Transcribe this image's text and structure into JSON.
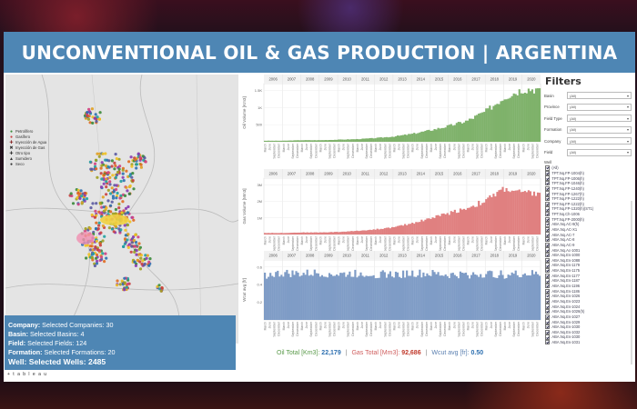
{
  "header": {
    "title": "UNCONVENTIONAL OIL & GAS PRODUCTION | ARGENTINA"
  },
  "map": {
    "legend": [
      {
        "label": "Petrolífero",
        "symbol": "dot",
        "color": "#3a8a3a"
      },
      {
        "label": "Gasífero",
        "symbol": "dot",
        "color": "#c84040"
      },
      {
        "label": "Inyección de Agua",
        "symbol": "plus",
        "color": "#8a2a2a"
      },
      {
        "label": "Inyección de Gas",
        "symbol": "cross",
        "color": "#333333"
      },
      {
        "label": "Otro tipo",
        "symbol": "plus",
        "color": "#333333"
      },
      {
        "label": "Sumidero",
        "symbol": "triangle",
        "color": "#333333"
      },
      {
        "label": "Seco",
        "symbol": "dot",
        "color": "#333333"
      }
    ],
    "credit": "© 2022 Mapbox © OpenStreetMap",
    "scale": "100 km"
  },
  "summary": {
    "company_label": "Company:",
    "company_value": "Selected Companies: 30",
    "basin_label": "Basin:",
    "basin_value": "Selected Basins: 4",
    "field_label": "Field:",
    "field_value": "Selected Fields: 124",
    "formation_label": "Formation:",
    "formation_value": "Selected Formations: 20",
    "wells_label": "Well:",
    "wells_value": "Selected Wells: 2485"
  },
  "brand": "+ t a b l e a u",
  "chart_data": [
    {
      "type": "bar",
      "name": "oil",
      "ylabel": "Oil Volume [Km3]",
      "color": "#7fb26b",
      "years": [
        "2006",
        "2007",
        "2008",
        "2009",
        "2010",
        "2011",
        "2012",
        "2013",
        "2014",
        "2015",
        "2016",
        "2017",
        "2018",
        "2019",
        "2020"
      ],
      "yticks": [
        "500",
        "1K",
        "1.5K"
      ],
      "trend": [
        2,
        2,
        3,
        3,
        4,
        5,
        7,
        10,
        15,
        22,
        30,
        40,
        58,
        85,
        100
      ]
    },
    {
      "type": "bar",
      "name": "gas",
      "ylabel": "Gas Volume [Mm3]",
      "color": "#e08080",
      "years": [
        "2006",
        "2007",
        "2008",
        "2009",
        "2010",
        "2011",
        "2012",
        "2013",
        "2014",
        "2015",
        "2016",
        "2017",
        "2018",
        "2019",
        "2020"
      ],
      "yticks": [
        "1M",
        "2M",
        "3M"
      ],
      "trend": [
        3,
        3,
        4,
        4,
        5,
        7,
        10,
        14,
        22,
        32,
        42,
        52,
        66,
        90,
        80
      ]
    },
    {
      "type": "bar",
      "name": "wcut",
      "ylabel": "Wcut avg [fr]",
      "color": "#7f9cc6",
      "years": [
        "2006",
        "2007",
        "2008",
        "2009",
        "2010",
        "2011",
        "2012",
        "2013",
        "2014",
        "2015",
        "2016",
        "2017",
        "2018",
        "2019",
        "2020"
      ],
      "yticks": [
        "0.2",
        "0.4",
        "0.6"
      ],
      "trend": [
        82,
        85,
        84,
        86,
        83,
        85,
        84,
        83,
        85,
        84,
        82,
        83,
        84,
        83,
        84
      ]
    }
  ],
  "totals": {
    "oil_label": "Oil Total [Km3]:",
    "oil_value": "22,179",
    "gas_label": "Gas Total [Mm3]:",
    "gas_value": "92,686",
    "wcut_label": "Wcut avg [fr]:",
    "wcut_value": "0.50",
    "sep": "|"
  },
  "filters": {
    "title": "Filters",
    "dropdowns": [
      {
        "label": "Basin",
        "value": "(All)"
      },
      {
        "label": "Province",
        "value": "(All)"
      },
      {
        "label": "Field Type",
        "value": "(All)"
      },
      {
        "label": "Formation",
        "value": "(All)"
      },
      {
        "label": "Company",
        "value": "(All)"
      },
      {
        "label": "Field",
        "value": "(All)"
      }
    ],
    "well_title": "Well",
    "wells": [
      "(All)",
      "TPT.Nq.FP-1004(h)",
      "TPT.Nq.FP-1006(h)",
      "TPT.Nq.FP-1046(h)",
      "TPT.Nq.FP-1240(h)",
      "TPT.Nq.FP-1267(h)",
      "TPT.Nq.FP-1222(h)",
      "TPT.Nq.FP-1222(h)",
      "TPT.Nq.FP-1320(h)(ST1)",
      "TPT.Nq.Ch-1006",
      "TPT.Nq.FP-2000(h)",
      "ABA.Nq.AC-9(h)",
      "ABA.Nq.AC-X1",
      "ABA.Nq.AC-7",
      "ABA.Nq.AC-8",
      "ABA.Nq.AC-9",
      "ABA.Nq.Ac-1001",
      "ABA.Nq.Es-1000",
      "ABA.Nq.Es-1088",
      "ABA.Nq.Es-1179",
      "ABA.Nq.Es-1175",
      "ABA.Nq.Es-1177",
      "ABA.Nq.Es-1187",
      "ABA.Nq.Es-1196",
      "ABA.Nq.Es-1186",
      "ABA.Nq.Es-1026",
      "ABA.Nq.Es-1023",
      "ABA.Nq.Es-1024",
      "ABA.Nq.Es-1026(h)",
      "ABA.Nq.Es-1027",
      "ABA.Nq.Es-1029",
      "ABA.Nq.Es-1030",
      "ABA.Nq.Es-1032",
      "ABA.Nq.Es-1030",
      "ABA.Nq.Es-1031"
    ]
  }
}
